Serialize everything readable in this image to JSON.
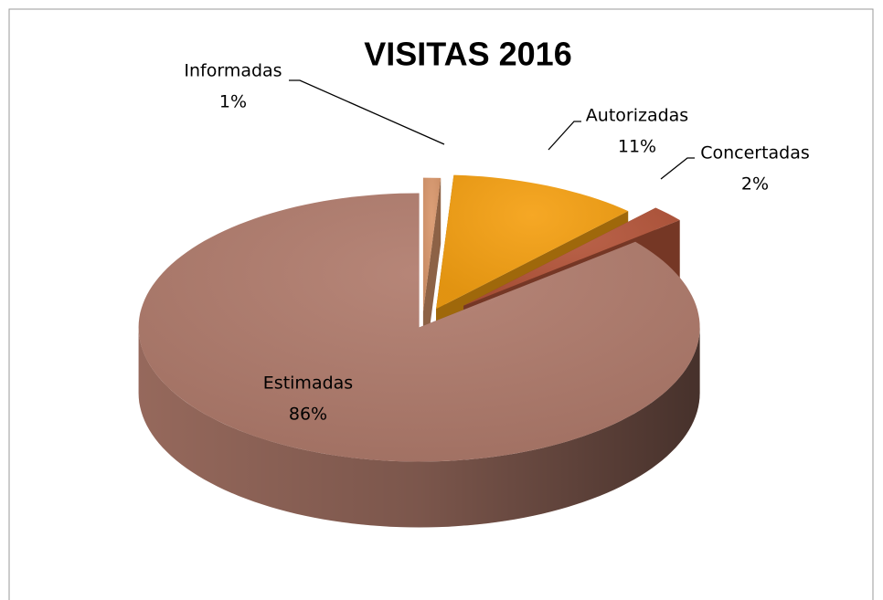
{
  "chart_data": {
    "type": "pie",
    "title": "VISITAS 2016",
    "categories": [
      "Informadas",
      "Autorizadas",
      "Concertadas",
      "Estimadas"
    ],
    "values": [
      1,
      11,
      2,
      86
    ],
    "value_labels": [
      "1%",
      "11%",
      "2%",
      "86%"
    ],
    "colors": [
      "#d9976c",
      "#f5a012",
      "#b4553a",
      "#b07b6c"
    ]
  }
}
